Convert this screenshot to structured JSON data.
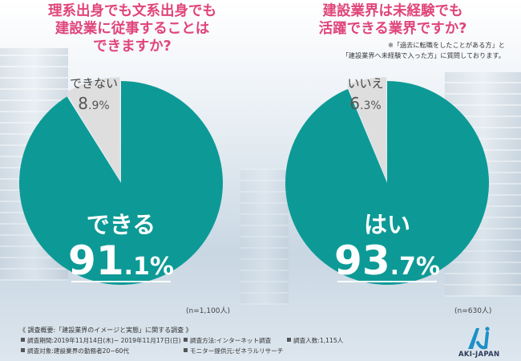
{
  "questions": {
    "left": {
      "line1": "理系出身でも文系出身でも",
      "line2": "建設業に従事することは",
      "line3": "できますか?"
    },
    "right": {
      "line1": "建設業界は未経験でも",
      "line2": "活躍できる業界ですか?",
      "note1": "※「過去に転職をしたことがある方」と",
      "note2": "「建設業界へ未経験で入った方」に質問しております。"
    }
  },
  "chart_data": [
    {
      "type": "pie",
      "title": "理系出身でも文系出身でも建設業に従事することはできますか?",
      "slices": [
        {
          "label": "できる",
          "value": 91.1,
          "pct_int": "91",
          "pct_dec": ".1",
          "pct_sign": "%",
          "color": "#0d9a96"
        },
        {
          "label": "できない",
          "value": 8.9,
          "pct_int": "8",
          "pct_dec": ".9",
          "pct_sign": "%",
          "color": "#dedede"
        }
      ],
      "n": "(n=1,100人)"
    },
    {
      "type": "pie",
      "title": "建設業界は未経験でも活躍できる業界ですか?",
      "slices": [
        {
          "label": "はい",
          "value": 93.7,
          "pct_int": "93",
          "pct_dec": ".7",
          "pct_sign": "%",
          "color": "#0d9a96"
        },
        {
          "label": "いいえ",
          "value": 6.3,
          "pct_int": "6",
          "pct_dec": ".3",
          "pct_sign": "%",
          "color": "#dedede"
        }
      ],
      "n": "(n=630人)"
    }
  ],
  "survey": {
    "title": "《 調査概要:「建設業界のイメージと実態」に関する調査 》",
    "period": "調査期間:2019年11月14日(木)~ 2019年11月17日(日)",
    "method": "調査方法:インターネット調査",
    "count": "調査人数:1,115人",
    "target": "調査対象:建設業界の勤務者20~60代",
    "provider": "モニター提供元:ゼネラルリサーチ"
  },
  "logo": {
    "text": "AKI-JAPAN",
    "mark_color": "#1e8fc8"
  },
  "colors": {
    "accent": "#e0457a",
    "teal": "#0d9a96",
    "gray": "#dedede"
  }
}
